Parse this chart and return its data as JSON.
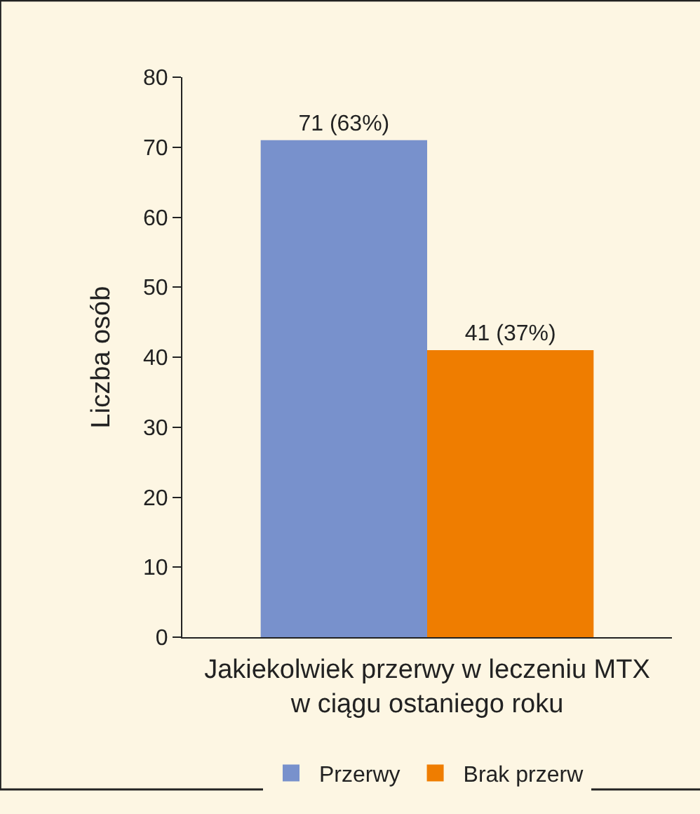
{
  "chart_data": {
    "type": "bar",
    "categories": [
      null
    ],
    "xlabel": "Jakiekolwiek przerwy w leczeniu MTX\nw ciągu ostaniego roku",
    "ylabel": "Liczba osób",
    "series": [
      {
        "name": "Przerwy",
        "color": "#7891cc",
        "values": [
          71
        ],
        "value_labels": [
          "71 (63%)"
        ]
      },
      {
        "name": "Brak przerw",
        "color": "#ef7d00",
        "values": [
          41
        ],
        "value_labels": [
          "41 (37%)"
        ]
      }
    ],
    "ylim": [
      0,
      80
    ],
    "yticks": [
      0,
      10,
      20,
      30,
      40,
      50,
      60,
      70,
      80
    ],
    "grid": false,
    "legend": "bottom"
  }
}
